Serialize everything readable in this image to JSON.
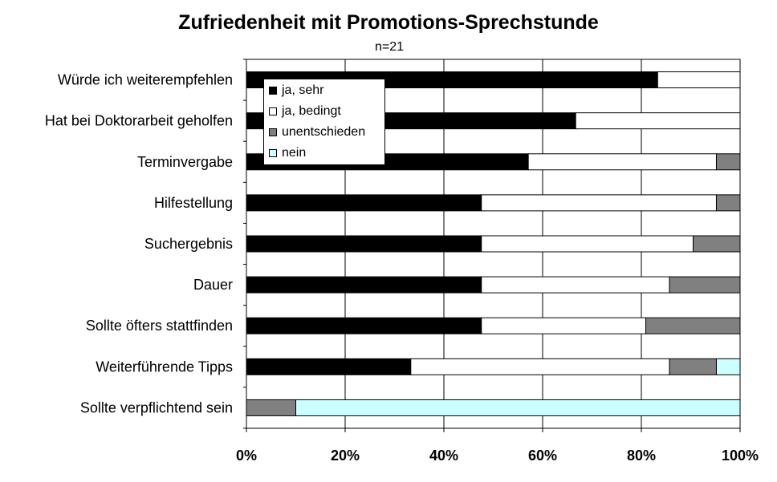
{
  "chart_data": {
    "type": "bar",
    "orientation": "horizontal",
    "stacked": "percent",
    "title": "Zufriedenheit mit Promotions-Sprechstunde",
    "subtitle": "n=21",
    "categories": [
      "Würde ich weiterempfehlen",
      "Hat bei Doktorarbeit geholfen",
      "Terminvergabe",
      "Hilfestellung",
      "Suchergebnis",
      "Dauer",
      "Sollte öfters stattfinden",
      "Weiterführende Tipps",
      "Sollte verpflichtend sein"
    ],
    "series": [
      {
        "name": "ja, sehr",
        "color": "#000000",
        "values": [
          83.3,
          66.7,
          57.1,
          47.6,
          47.6,
          47.6,
          47.6,
          33.3,
          0
        ]
      },
      {
        "name": "ja, bedingt",
        "color": "#ffffff",
        "values": [
          16.7,
          33.3,
          38.1,
          47.6,
          42.9,
          38.1,
          33.3,
          52.4,
          0
        ]
      },
      {
        "name": "unentschieden",
        "color": "#808080",
        "values": [
          0,
          0,
          4.8,
          4.8,
          9.5,
          14.3,
          19.1,
          9.5,
          10
        ]
      },
      {
        "name": "nein",
        "color": "#ccffff",
        "values": [
          0,
          0,
          0,
          0,
          0,
          0,
          0,
          4.8,
          90
        ]
      }
    ],
    "xlim": [
      0,
      100
    ],
    "xticks": [
      "0%",
      "20%",
      "40%",
      "60%",
      "80%",
      "100%"
    ],
    "grid": true,
    "legend_position": "top-left inside plot"
  }
}
